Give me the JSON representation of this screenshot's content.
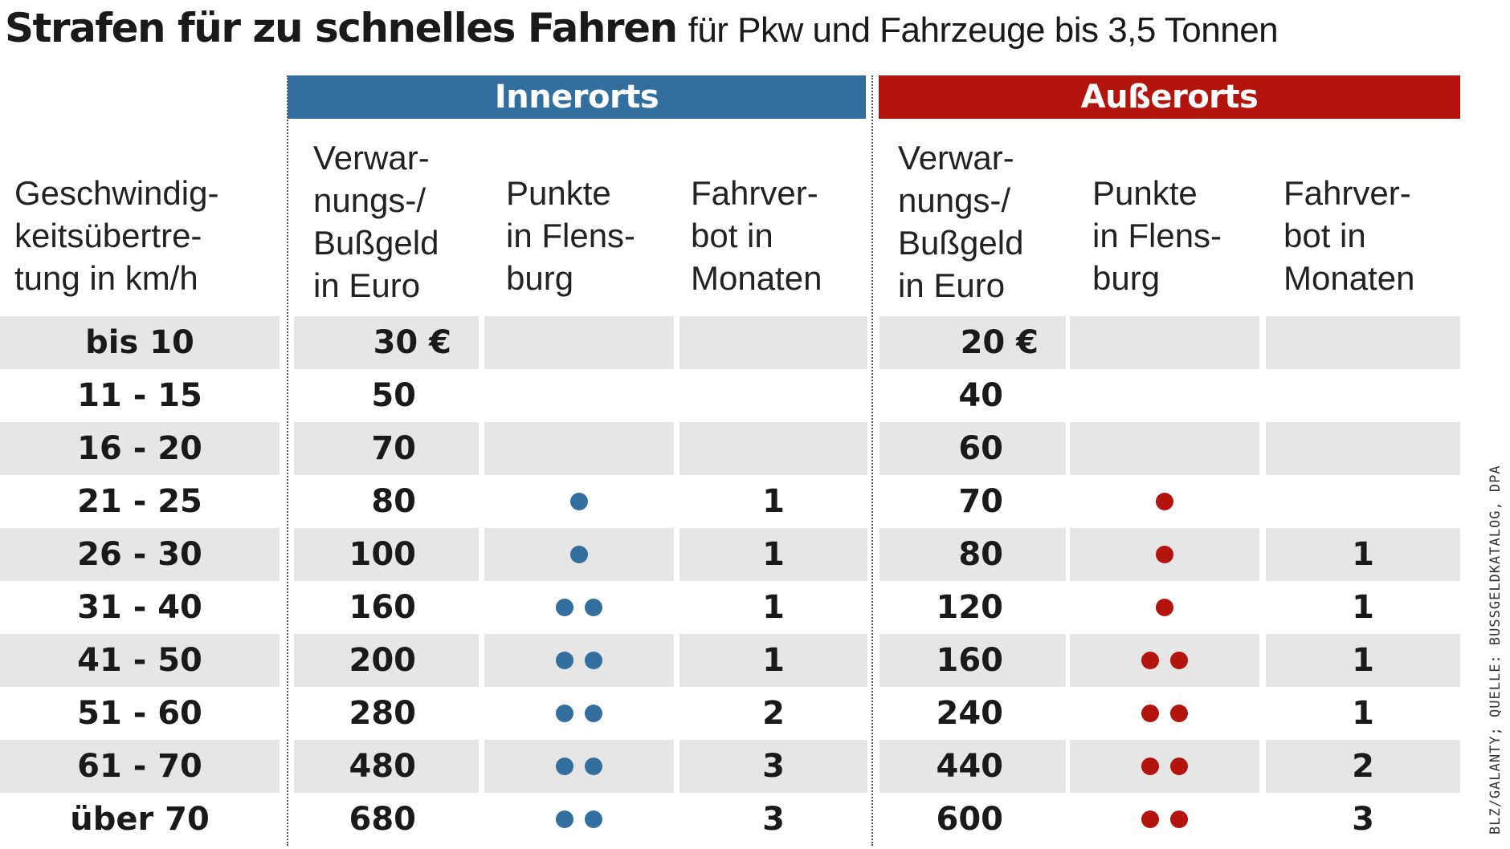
{
  "title": "Strafen für zu schnelles Fahren",
  "subtitle": "für Pkw und Fahrzeuge bis 3,5 Tonnen",
  "colors": {
    "inner": "#336f9e",
    "outer": "#b3140e",
    "shade": "#e6e6e6"
  },
  "bands": {
    "inner": "Innerorts",
    "outer": "Außerorts"
  },
  "headers": {
    "speed": [
      "Geschwindig-",
      "keitsübertre-",
      "tung in km/h"
    ],
    "fine": [
      "Verwar-",
      "nungs-/",
      "Bußgeld",
      "in Euro"
    ],
    "points": [
      "Punkte",
      "in Flens-",
      "burg"
    ],
    "ban": [
      "Fahrver-",
      "bot in",
      "Monaten"
    ]
  },
  "source": "BLZ/GALANTY; QUELLE: BUSSGELDKATALOG, DPA",
  "chart_data": {
    "type": "table",
    "title": "Strafen für zu schnelles Fahren",
    "subtitle": "für Pkw und Fahrzeuge bis 3,5 Tonnen",
    "groups": [
      "Innerorts",
      "Außerorts"
    ],
    "columns": [
      "Geschwindigkeitsübertretung in km/h",
      "Verwarnungs-/Bußgeld in Euro",
      "Punkte in Flensburg",
      "Fahrverbot in Monaten"
    ],
    "rows": [
      {
        "speed": "bis 10",
        "inner": {
          "fine": "30 €",
          "points": 0,
          "ban": ""
        },
        "outer": {
          "fine": "20 €",
          "points": 0,
          "ban": ""
        }
      },
      {
        "speed": "11 - 15",
        "inner": {
          "fine": "50",
          "points": 0,
          "ban": ""
        },
        "outer": {
          "fine": "40",
          "points": 0,
          "ban": ""
        }
      },
      {
        "speed": "16 - 20",
        "inner": {
          "fine": "70",
          "points": 0,
          "ban": ""
        },
        "outer": {
          "fine": "60",
          "points": 0,
          "ban": ""
        }
      },
      {
        "speed": "21 - 25",
        "inner": {
          "fine": "80",
          "points": 1,
          "ban": "1"
        },
        "outer": {
          "fine": "70",
          "points": 1,
          "ban": ""
        }
      },
      {
        "speed": "26 - 30",
        "inner": {
          "fine": "100",
          "points": 1,
          "ban": "1"
        },
        "outer": {
          "fine": "80",
          "points": 1,
          "ban": "1"
        }
      },
      {
        "speed": "31 - 40",
        "inner": {
          "fine": "160",
          "points": 2,
          "ban": "1"
        },
        "outer": {
          "fine": "120",
          "points": 1,
          "ban": "1"
        }
      },
      {
        "speed": "41 - 50",
        "inner": {
          "fine": "200",
          "points": 2,
          "ban": "1"
        },
        "outer": {
          "fine": "160",
          "points": 2,
          "ban": "1"
        }
      },
      {
        "speed": "51 - 60",
        "inner": {
          "fine": "280",
          "points": 2,
          "ban": "2"
        },
        "outer": {
          "fine": "240",
          "points": 2,
          "ban": "1"
        }
      },
      {
        "speed": "61 - 70",
        "inner": {
          "fine": "480",
          "points": 2,
          "ban": "3"
        },
        "outer": {
          "fine": "440",
          "points": 2,
          "ban": "2"
        }
      },
      {
        "speed": "über 70",
        "inner": {
          "fine": "680",
          "points": 2,
          "ban": "3"
        },
        "outer": {
          "fine": "600",
          "points": 2,
          "ban": "3"
        }
      }
    ]
  }
}
